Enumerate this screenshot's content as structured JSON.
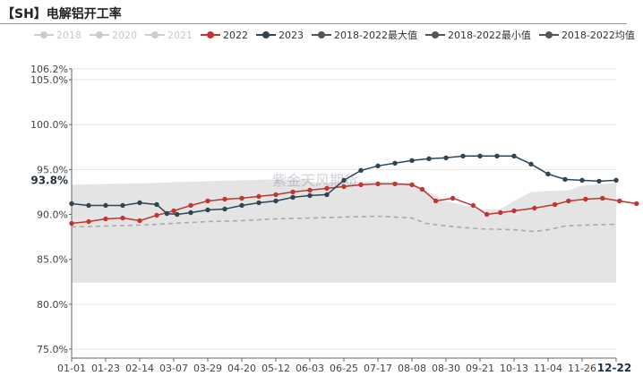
{
  "page_title": "【SH】电解铝开工率",
  "legend": [
    {
      "label": "2018",
      "color": "#cccccc",
      "active": false
    },
    {
      "label": "2020",
      "color": "#cccccc",
      "active": false
    },
    {
      "label": "2021",
      "color": "#cccccc",
      "active": false
    },
    {
      "label": "2022",
      "color": "#c23531",
      "active": true
    },
    {
      "label": "2023",
      "color": "#2f4554",
      "active": true
    },
    {
      "label": "2018-2022最大值",
      "color": "#555555",
      "active": true
    },
    {
      "label": "2018-2022最小值",
      "color": "#555555",
      "active": true
    },
    {
      "label": "2018-2022均值",
      "color": "#555555",
      "active": true
    }
  ],
  "watermark": "紫金天风期货",
  "chart_data": {
    "type": "line",
    "title": "【SH】电解铝开工率",
    "x_ticks": [
      "01-01",
      "01-23",
      "02-14",
      "03-07",
      "03-29",
      "04-20",
      "05-12",
      "06-03",
      "06-25",
      "07-17",
      "08-08",
      "08-30",
      "09-21",
      "10-13",
      "11-04",
      "11-26",
      "12-22"
    ],
    "x_tick_highlighted": "12-22",
    "y_tick_labels": [
      "75.0%",
      "80.0%",
      "85.0%",
      "90.0%",
      "95.0%",
      "100.0%",
      "105.0%",
      "106.2%"
    ],
    "y_tick_values": [
      75.0,
      80.0,
      85.0,
      90.0,
      95.0,
      100.0,
      105.0,
      106.2
    ],
    "ylim": [
      74.0,
      106.2
    ],
    "y_highlight_label": "93.8%",
    "y_highlight_value": 93.8,
    "grid": true,
    "legend_position": "top",
    "band": {
      "name": "2018-2022最大值/最小值",
      "color": "#e4e4e4",
      "x": [
        0,
        2.5,
        3,
        4,
        5,
        6,
        6.8,
        7.2,
        8,
        9,
        10,
        11,
        12.1,
        12.6,
        13,
        13.5,
        14.6,
        15,
        16
      ],
      "upper": [
        93.3,
        93.5,
        93.6,
        93.7,
        93.8,
        93.9,
        93.9,
        93.5,
        93.6,
        93.7,
        93.5,
        91.5,
        90.5,
        90.6,
        91.5,
        92.5,
        92.7,
        93.2,
        93.5
      ],
      "lower": [
        82.4,
        82.4,
        82.4,
        82.4,
        82.4,
        82.4,
        82.4,
        82.4,
        82.4,
        82.4,
        82.4,
        82.4,
        82.4,
        82.4,
        82.4,
        82.4,
        82.4,
        82.4,
        82.4
      ]
    },
    "series": [
      {
        "name": "2022",
        "color": "#c23531",
        "style": "solid",
        "marker": true,
        "x": [
          0,
          0.5,
          1,
          1.5,
          2,
          2.5,
          3,
          3.5,
          4,
          4.5,
          5,
          5.5,
          6,
          6.5,
          7,
          7.5,
          8,
          8.5,
          9,
          9.5,
          10,
          10.3,
          10.7,
          11.2,
          11.8,
          12.2,
          12.6,
          13,
          13.6,
          14.2,
          14.6,
          15.1,
          15.6,
          16.1,
          16.6
        ],
        "y": [
          89.0,
          89.2,
          89.5,
          89.6,
          89.3,
          89.9,
          90.4,
          91.0,
          91.5,
          91.7,
          91.8,
          92.0,
          92.2,
          92.5,
          92.7,
          92.9,
          93.1,
          93.3,
          93.4,
          93.4,
          93.3,
          92.8,
          91.5,
          91.8,
          91.0,
          90.0,
          90.2,
          90.4,
          90.7,
          91.1,
          91.5,
          91.7,
          91.8,
          91.5,
          91.2
        ]
      },
      {
        "name": "2023",
        "color": "#2f4554",
        "style": "solid",
        "marker": true,
        "x": [
          0,
          0.5,
          1,
          1.5,
          2,
          2.5,
          2.8,
          3.1,
          3.5,
          4,
          4.5,
          5,
          5.5,
          6,
          6.5,
          7,
          7.5,
          8,
          8.5,
          9,
          9.5,
          10,
          10.5,
          11,
          11.5,
          12,
          12.5,
          13,
          13.5,
          14,
          14.5,
          15,
          15.5,
          16
        ],
        "y": [
          91.2,
          91.0,
          91.0,
          91.0,
          91.3,
          91.1,
          90.1,
          90.0,
          90.2,
          90.5,
          90.6,
          91.0,
          91.3,
          91.5,
          91.9,
          92.1,
          92.2,
          93.8,
          94.9,
          95.4,
          95.7,
          96.0,
          96.2,
          96.3,
          96.5,
          96.5,
          96.5,
          96.5,
          95.6,
          94.5,
          93.9,
          93.8,
          93.7,
          93.8
        ]
      },
      {
        "name": "2018-2022均值",
        "color": "#aaaaaa",
        "style": "dashed",
        "marker": false,
        "x": [
          0,
          1,
          2,
          3,
          4,
          5,
          6,
          7,
          8,
          9,
          10,
          10.4,
          10.8,
          11.3,
          12,
          13,
          13.6,
          14,
          14.5,
          15,
          16
        ],
        "y": [
          88.6,
          88.7,
          88.8,
          89.0,
          89.2,
          89.3,
          89.5,
          89.6,
          89.7,
          89.8,
          89.6,
          89.0,
          88.8,
          88.6,
          88.4,
          88.3,
          88.1,
          88.3,
          88.7,
          88.8,
          88.9
        ]
      }
    ]
  }
}
